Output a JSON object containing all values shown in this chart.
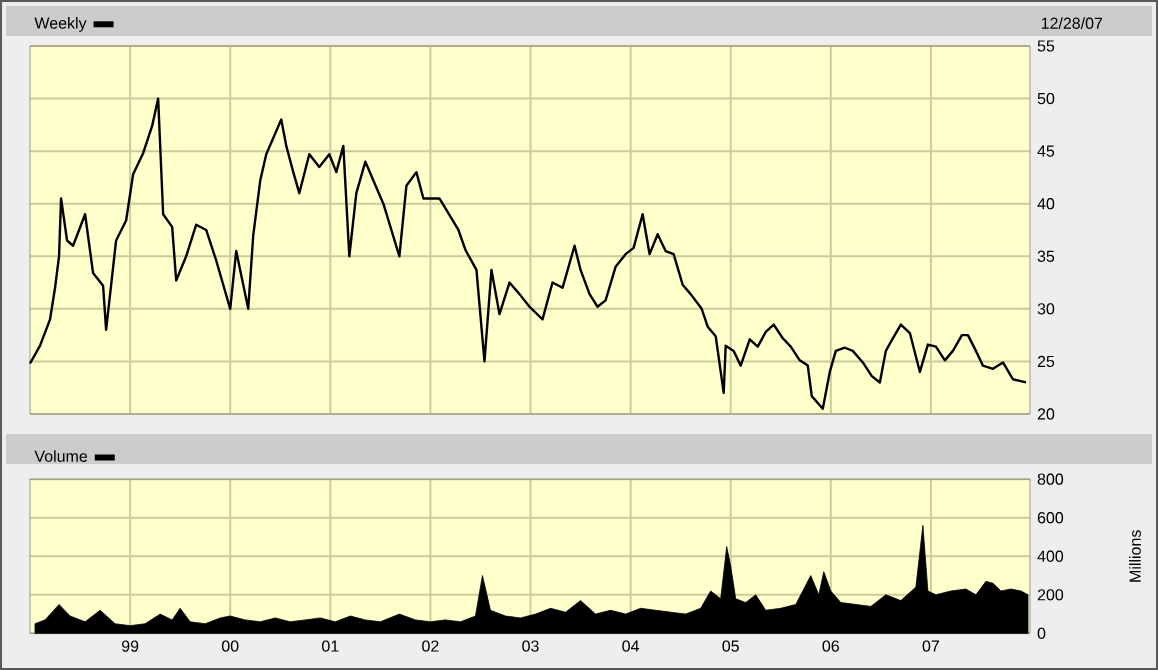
{
  "chart_data": [
    {
      "type": "line",
      "subtitle": "12/28/07",
      "legend": "top left",
      "grid": true,
      "tick_labels": "y",
      "xlim": [
        1998.0,
        2007.99
      ],
      "ylim": [
        20,
        55
      ],
      "xticks": [
        {
          "value": 1999,
          "label": null
        },
        {
          "value": 2000,
          "label": null
        },
        {
          "value": 2001,
          "label": null
        },
        {
          "value": 2002,
          "label": null
        },
        {
          "value": 2003,
          "label": null
        },
        {
          "value": 2004,
          "label": null
        },
        {
          "value": 2005,
          "label": null
        },
        {
          "value": 2006,
          "label": null
        },
        {
          "value": 2007,
          "label": null
        }
      ],
      "yticks": [
        20,
        25,
        30,
        35,
        40,
        45,
        50,
        55
      ],
      "series": [
        {
          "name": "Weekly",
          "color": "#000000",
          "x": [
            1998.0,
            1998.1,
            1998.2,
            1998.25,
            1998.29,
            1998.31,
            1998.37,
            1998.43,
            1998.55,
            1998.63,
            1998.73,
            1998.76,
            1998.86,
            1998.96,
            1999.03,
            1999.13,
            1999.22,
            1999.28,
            1999.33,
            1999.42,
            1999.46,
            1999.56,
            1999.66,
            1999.76,
            1999.86,
            2000.0,
            2000.06,
            2000.18,
            2000.23,
            2000.3,
            2000.36,
            2000.51,
            2000.56,
            2000.63,
            2000.69,
            2000.79,
            2000.89,
            2000.99,
            2001.06,
            2001.13,
            2001.19,
            2001.26,
            2001.35,
            2001.43,
            2001.53,
            2001.69,
            2001.76,
            2001.86,
            2001.93,
            2002.09,
            2002.28,
            2002.35,
            2002.46,
            2002.54,
            2002.61,
            2002.69,
            2002.79,
            2002.89,
            2002.99,
            2003.12,
            2003.22,
            2003.32,
            2003.44,
            2003.5,
            2003.59,
            2003.67,
            2003.75,
            2003.85,
            2003.95,
            2004.03,
            2004.12,
            2004.19,
            2004.27,
            2004.35,
            2004.43,
            2004.52,
            2004.6,
            2004.71,
            2004.77,
            2004.85,
            2004.93,
            2004.95,
            2005.03,
            2005.1,
            2005.19,
            2005.27,
            2005.35,
            2005.43,
            2005.52,
            2005.6,
            2005.69,
            2005.77,
            2005.81,
            2005.92,
            2005.99,
            2006.05,
            2006.14,
            2006.22,
            2006.32,
            2006.41,
            2006.49,
            2006.55,
            2006.62,
            2006.7,
            2006.79,
            2006.89,
            2006.97,
            2007.05,
            2007.14,
            2007.22,
            2007.31,
            2007.37,
            2007.45,
            2007.52,
            2007.62,
            2007.72,
            2007.82,
            2007.95
          ],
          "values": [
            24.8,
            26.5,
            29,
            32,
            35,
            40.5,
            36.5,
            36,
            39,
            33.4,
            32.2,
            28,
            36.5,
            38.4,
            42.8,
            44.8,
            47.4,
            50,
            39,
            37.8,
            32.7,
            35,
            38,
            37.5,
            34.6,
            30,
            35.5,
            30,
            37,
            42.2,
            44.7,
            48,
            45.5,
            43,
            41,
            44.7,
            43.5,
            44.7,
            43,
            45.5,
            35,
            41,
            44,
            42.2,
            40,
            35,
            41.7,
            43,
            40.5,
            40.5,
            37.5,
            35.6,
            33.7,
            25,
            33.7,
            29.5,
            32.5,
            31.4,
            30.2,
            29,
            32.5,
            32,
            36,
            33.7,
            31.4,
            30.2,
            30.8,
            34,
            35.2,
            35.8,
            39,
            35.2,
            37.1,
            35.5,
            35.2,
            32.3,
            31.4,
            30,
            28.3,
            27.4,
            22,
            26.5,
            26,
            24.6,
            27.1,
            26.4,
            27.8,
            28.5,
            27.2,
            26.4,
            25.1,
            24.6,
            21.7,
            20.5,
            24,
            26,
            26.3,
            26,
            24.9,
            23.6,
            23,
            26,
            27.2,
            28.5,
            27.7,
            24,
            26.6,
            26.4,
            25.1,
            26,
            27.5,
            27.5,
            26,
            24.6,
            24.3,
            24.9,
            23.3,
            23
          ]
        }
      ]
    },
    {
      "type": "area",
      "ylabel": "Millions",
      "legend": "top left",
      "grid": true,
      "xlim": [
        1998.0,
        2007.99
      ],
      "ylim": [
        0,
        800
      ],
      "xticks": [
        {
          "value": 1999,
          "label": "99"
        },
        {
          "value": 2000,
          "label": "00"
        },
        {
          "value": 2001,
          "label": "01"
        },
        {
          "value": 2002,
          "label": "02"
        },
        {
          "value": 2003,
          "label": "03"
        },
        {
          "value": 2004,
          "label": "04"
        },
        {
          "value": 2005,
          "label": "05"
        },
        {
          "value": 2006,
          "label": "06"
        },
        {
          "value": 2007,
          "label": "07"
        }
      ],
      "yticks": [
        0,
        200,
        400,
        600,
        800
      ],
      "series": [
        {
          "name": "Volume",
          "color": "#000000",
          "x": [
            1998.05,
            1998.15,
            1998.29,
            1998.4,
            1998.55,
            1998.7,
            1998.85,
            1999.0,
            1999.15,
            1999.3,
            1999.42,
            1999.5,
            1999.6,
            1999.75,
            1999.9,
            2000.0,
            2000.15,
            2000.3,
            2000.45,
            2000.6,
            2000.75,
            2000.9,
            2001.05,
            2001.2,
            2001.35,
            2001.5,
            2001.69,
            2001.85,
            2002.0,
            2002.15,
            2002.3,
            2002.45,
            2002.52,
            2002.6,
            2002.75,
            2002.9,
            2003.05,
            2003.2,
            2003.35,
            2003.5,
            2003.65,
            2003.8,
            2003.95,
            2004.1,
            2004.25,
            2004.4,
            2004.55,
            2004.7,
            2004.8,
            2004.9,
            2004.96,
            2005.0,
            2005.05,
            2005.15,
            2005.25,
            2005.35,
            2005.5,
            2005.65,
            2005.8,
            2005.88,
            2005.93,
            2006.0,
            2006.1,
            2006.25,
            2006.4,
            2006.55,
            2006.7,
            2006.85,
            2006.92,
            2006.97,
            2007.05,
            2007.2,
            2007.35,
            2007.45,
            2007.55,
            2007.62,
            2007.7,
            2007.8,
            2007.9,
            2007.97
          ],
          "values": [
            50,
            70,
            150,
            90,
            60,
            120,
            50,
            40,
            50,
            100,
            70,
            130,
            60,
            50,
            80,
            90,
            70,
            60,
            80,
            60,
            70,
            80,
            60,
            90,
            70,
            60,
            100,
            70,
            60,
            70,
            60,
            90,
            300,
            120,
            90,
            80,
            100,
            130,
            110,
            170,
            100,
            120,
            100,
            130,
            120,
            110,
            100,
            130,
            220,
            180,
            450,
            350,
            180,
            160,
            200,
            120,
            130,
            150,
            300,
            200,
            320,
            220,
            160,
            150,
            140,
            200,
            170,
            240,
            560,
            220,
            200,
            220,
            230,
            200,
            270,
            260,
            220,
            230,
            220,
            200
          ]
        }
      ]
    }
  ]
}
